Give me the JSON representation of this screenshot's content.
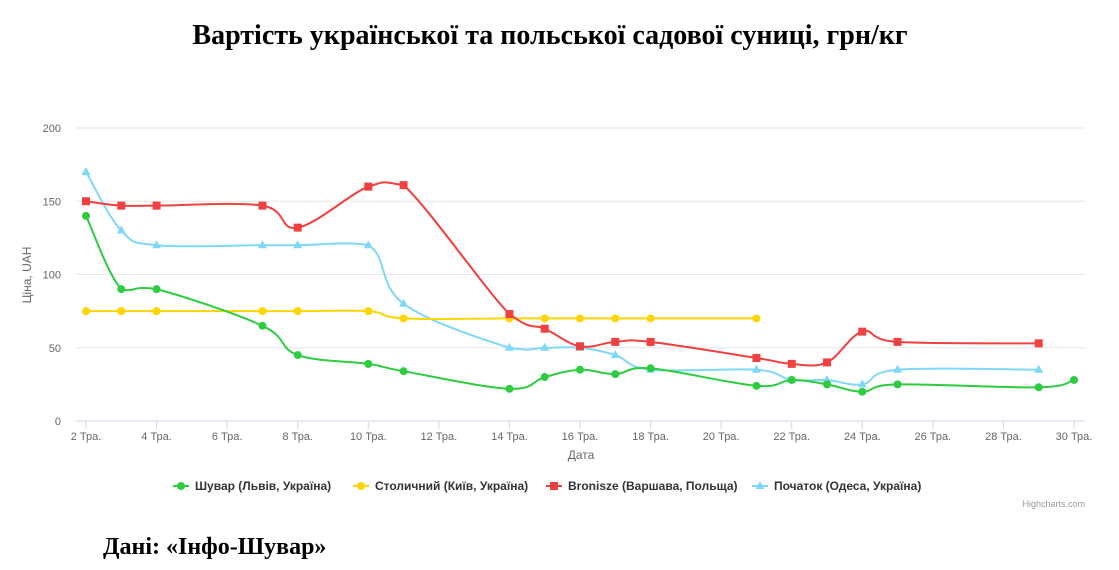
{
  "chart_data": {
    "type": "line",
    "title": "Вартість української та польської садової суниці, грн/кг",
    "xlabel": "Дата",
    "ylabel": "Ціна, UAH",
    "ylim": [
      0,
      200
    ],
    "yticks": [
      0,
      50,
      100,
      150,
      200
    ],
    "xlim": [
      2,
      30
    ],
    "x_tick_values": [
      2,
      4,
      6,
      8,
      10,
      12,
      14,
      16,
      18,
      20,
      22,
      24,
      26,
      28,
      30
    ],
    "x_tick_labels": [
      "2 Тра.",
      "4 Тра.",
      "6 Тра.",
      "8 Тра.",
      "10 Тра.",
      "12 Тра.",
      "14 Тра.",
      "16 Тра.",
      "18 Тра.",
      "20 Тра.",
      "22 Тра.",
      "24 Тра.",
      "26 Тра.",
      "28 Тра.",
      "30 Тра."
    ],
    "grid": true,
    "legend_position": "bottom",
    "series": [
      {
        "name": "Шувар (Львів, Україна)",
        "color": "#2ecc40",
        "marker": "circle",
        "points": [
          [
            2,
            140
          ],
          [
            3,
            90
          ],
          [
            4,
            90
          ],
          [
            7,
            65
          ],
          [
            8,
            45
          ],
          [
            10,
            39
          ],
          [
            11,
            34
          ],
          [
            14,
            22
          ],
          [
            15,
            30
          ],
          [
            16,
            35
          ],
          [
            17,
            32
          ],
          [
            18,
            36
          ],
          [
            21,
            24
          ],
          [
            22,
            28
          ],
          [
            23,
            25
          ],
          [
            24,
            20
          ],
          [
            25,
            25
          ],
          [
            29,
            23
          ],
          [
            30,
            28
          ]
        ]
      },
      {
        "name": "Столичний (Київ, Україна)",
        "color": "#ffd500",
        "marker": "circle",
        "points": [
          [
            2,
            75
          ],
          [
            3,
            75
          ],
          [
            4,
            75
          ],
          [
            7,
            75
          ],
          [
            8,
            75
          ],
          [
            10,
            75
          ],
          [
            11,
            70
          ],
          [
            14,
            70
          ],
          [
            15,
            70
          ],
          [
            16,
            70
          ],
          [
            17,
            70
          ],
          [
            18,
            70
          ],
          [
            21,
            70
          ]
        ]
      },
      {
        "name": "Bronisze (Варшава, Польща)",
        "color": "#f04040",
        "marker": "square",
        "points": [
          [
            2,
            150
          ],
          [
            3,
            147
          ],
          [
            4,
            147
          ],
          [
            7,
            147
          ],
          [
            8,
            132
          ],
          [
            10,
            160
          ],
          [
            11,
            161
          ],
          [
            14,
            73
          ],
          [
            15,
            63
          ],
          [
            16,
            51
          ],
          [
            17,
            54
          ],
          [
            18,
            54
          ],
          [
            21,
            43
          ],
          [
            22,
            39
          ],
          [
            23,
            40
          ],
          [
            24,
            61
          ],
          [
            25,
            54
          ],
          [
            29,
            53
          ]
        ]
      },
      {
        "name": "Початок (Одеса, Україна)",
        "color": "#7fd8f7",
        "marker": "triangle",
        "points": [
          [
            2,
            170
          ],
          [
            3,
            130
          ],
          [
            4,
            120
          ],
          [
            7,
            120
          ],
          [
            8,
            120
          ],
          [
            10,
            120
          ],
          [
            11,
            80
          ],
          [
            14,
            50
          ],
          [
            15,
            50
          ],
          [
            16,
            50
          ],
          [
            17,
            45
          ],
          [
            18,
            35
          ],
          [
            21,
            35
          ],
          [
            22,
            28
          ],
          [
            23,
            28
          ],
          [
            24,
            25
          ],
          [
            25,
            35
          ],
          [
            29,
            35
          ]
        ]
      }
    ],
    "credit": "Highcharts.com",
    "source_note": "Дані: «Інфо-Шувар»"
  }
}
